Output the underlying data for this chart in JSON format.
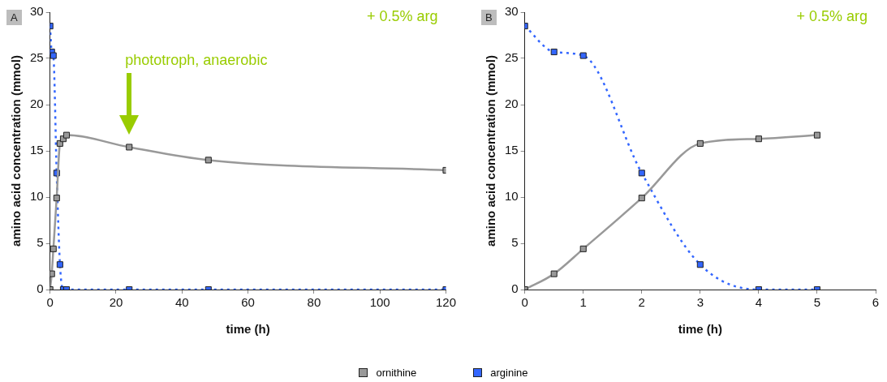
{
  "chart_data": [
    {
      "type": "line",
      "title": "A",
      "xlabel": "time (h)",
      "ylabel": "amino acid concentration (mmol)",
      "x": [
        0,
        0.5,
        1,
        2,
        3,
        4,
        5,
        24,
        48,
        120
      ],
      "series": [
        {
          "name": "ornithine",
          "color": "#999999",
          "line_style": "solid",
          "values": [
            0,
            1.7,
            4.4,
            9.9,
            15.8,
            16.3,
            16.7,
            15.4,
            14.0,
            12.9
          ]
        },
        {
          "name": "arginine",
          "color": "#3366ff",
          "line_style": "dotted",
          "values": [
            28.5,
            25.7,
            25.3,
            12.6,
            2.7,
            0,
            0,
            0,
            0,
            0
          ]
        }
      ],
      "xlim": [
        0,
        120
      ],
      "xticks": [
        0,
        20,
        40,
        60,
        80,
        100,
        120
      ],
      "ylim": [
        0,
        30
      ],
      "yticks": [
        0,
        5,
        10,
        15,
        20,
        25,
        30
      ],
      "grid": false,
      "marker": "square",
      "legend": "bottom",
      "annotations": [
        "+ 0.5% arg",
        "phototroph, anaerobic"
      ]
    },
    {
      "type": "line",
      "title": "B",
      "xlabel": "time (h)",
      "ylabel": "amino acid concentration (mmol)",
      "x": [
        0,
        0.5,
        1,
        2,
        3,
        4,
        5
      ],
      "series": [
        {
          "color": "#999999",
          "line_style": "solid",
          "values": [
            0,
            1.7,
            4.4,
            9.9,
            15.8,
            16.3,
            16.7
          ]
        },
        {
          "color": "#3366ff",
          "line_style": "dotted",
          "values": [
            28.5,
            25.7,
            25.3,
            12.6,
            2.7,
            0,
            0
          ]
        }
      ],
      "xlim": [
        0,
        6
      ],
      "xticks": [
        0,
        1,
        2,
        3,
        4,
        5,
        6
      ],
      "ylim": [
        0,
        30
      ],
      "yticks": [
        0,
        5,
        10,
        15,
        20,
        25,
        30
      ],
      "grid": false,
      "marker": "square",
      "annotations": [
        "+ 0.5% arg"
      ]
    }
  ]
}
